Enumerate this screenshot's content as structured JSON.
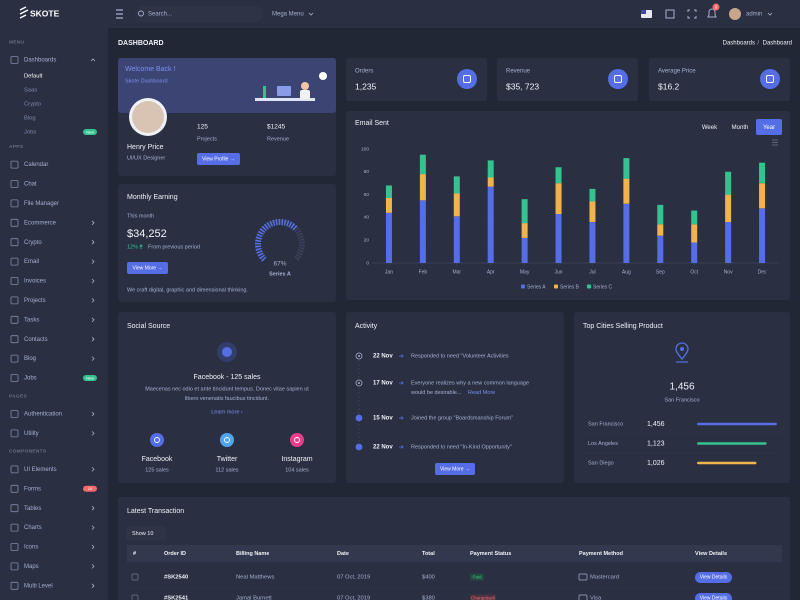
{
  "brand": "SKOTE",
  "topbar": {
    "search": "Search...",
    "mega_menu": "Mega Menu",
    "notifications": "3",
    "user": "admin"
  },
  "page": {
    "title": "DASHBOARD",
    "breadcrumb": [
      "Dashboards",
      "Dashboard"
    ]
  },
  "sidebar": [
    {
      "title": "MENU",
      "items": [
        {
          "label": "Dashboards",
          "expandable": true,
          "children": [
            {
              "label": "Default",
              "active": true
            },
            {
              "label": "Saas"
            },
            {
              "label": "Crypto"
            },
            {
              "label": "Blog"
            },
            {
              "label": "Jobs",
              "badge": "New"
            }
          ]
        }
      ]
    },
    {
      "title": "APPS",
      "items": [
        {
          "label": "Calendar"
        },
        {
          "label": "Chat"
        },
        {
          "label": "File Manager"
        },
        {
          "label": "Ecommerce",
          "expandable": true
        },
        {
          "label": "Crypto",
          "expandable": true
        },
        {
          "label": "Email",
          "expandable": true
        },
        {
          "label": "Invoices",
          "expandable": true
        },
        {
          "label": "Projects",
          "expandable": true
        },
        {
          "label": "Tasks",
          "expandable": true
        },
        {
          "label": "Contacts",
          "expandable": true
        },
        {
          "label": "Blog",
          "expandable": true
        },
        {
          "label": "Jobs",
          "badge": "New"
        }
      ]
    },
    {
      "title": "PAGES",
      "items": [
        {
          "label": "Authentication",
          "expandable": true
        },
        {
          "label": "Utility",
          "expandable": true
        }
      ]
    },
    {
      "title": "COMPONENTS",
      "items": [
        {
          "label": "UI Elements",
          "expandable": true
        },
        {
          "label": "Forms",
          "badge": "10"
        },
        {
          "label": "Tables",
          "expandable": true
        },
        {
          "label": "Charts",
          "expandable": true
        },
        {
          "label": "Icons",
          "expandable": true
        },
        {
          "label": "Maps",
          "expandable": true
        },
        {
          "label": "Multi Level",
          "expandable": true
        }
      ]
    }
  ],
  "welcome": {
    "title": "Welcome Back !",
    "subtitle": "Skote Dashboard",
    "name": "Henry Price",
    "role": "UI/UX Designer",
    "stats": [
      {
        "value": "125",
        "label": "Projects"
      },
      {
        "value": "$1245",
        "label": "Revenue"
      }
    ],
    "button": "View Profile →"
  },
  "earning": {
    "title": "Monthly Earning",
    "period": "This month",
    "amount": "$34,252",
    "change": "12%",
    "change_text": "From previous period",
    "button": "View More →",
    "note": "We craft digital, graphic and dimensional thinking.",
    "gauge": {
      "value": 67,
      "label": "67%",
      "name": "Series A"
    }
  },
  "stats": [
    {
      "label": "Orders",
      "value": "1,235"
    },
    {
      "label": "Revenue",
      "value": "$35, 723"
    },
    {
      "label": "Average Price",
      "value": "$16.2"
    }
  ],
  "email_card": {
    "title": "Email Sent",
    "tabs": [
      {
        "label": "Week"
      },
      {
        "label": "Month"
      },
      {
        "label": "Year",
        "active": true
      }
    ]
  },
  "chart_data": {
    "type": "stacked_bar",
    "categories": [
      "Jan",
      "Feb",
      "Mar",
      "Apr",
      "May",
      "Jun",
      "Jul",
      "Aug",
      "Sep",
      "Oct",
      "Nov",
      "Dec"
    ],
    "series": [
      {
        "name": "Series A",
        "color": "#556ee6",
        "values": [
          44,
          55,
          41,
          67,
          22,
          43,
          36,
          52,
          24,
          18,
          36,
          48
        ]
      },
      {
        "name": "Series B",
        "color": "#f1b44c",
        "values": [
          13,
          23,
          20,
          8,
          13,
          27,
          18,
          22,
          10,
          16,
          24,
          22
        ]
      },
      {
        "name": "Series C",
        "color": "#34c38f",
        "values": [
          11,
          17,
          15,
          15,
          21,
          14,
          11,
          18,
          17,
          12,
          20,
          18
        ]
      }
    ],
    "ylim": [
      0,
      100
    ],
    "yticks": [
      0,
      20,
      40,
      60,
      80,
      100
    ],
    "grid": true,
    "legend": "bottom"
  },
  "social": {
    "title": "Social Source",
    "headline": "Facebook - 125 sales",
    "text": [
      "Maecenas nec odio et ante tincidunt tempus. Donec vitae sapien ut",
      "libero venenatis faucibus tincidunt."
    ],
    "link": "Learn more ›",
    "sources": [
      {
        "name": "Facebook",
        "sales": "125 sales",
        "color": "#556ee6"
      },
      {
        "name": "Twitter",
        "sales": "112 sales",
        "color": "#50a5f1"
      },
      {
        "name": "Instagram",
        "sales": "104 sales",
        "color": "#e83e8c"
      }
    ]
  },
  "activity": {
    "title": "Activity",
    "button": "View More →",
    "items": [
      {
        "date": "22 Nov",
        "text": [
          "Responded to need \"Volunteer Activities"
        ]
      },
      {
        "date": "17 Nov",
        "text": [
          "Everyone realizes why a new common language",
          "would be desirable..."
        ],
        "link": "Read More"
      },
      {
        "date": "15 Nov",
        "text": [
          "Joined the group \"Boardsmanship Forum\""
        ]
      },
      {
        "date": "22 Nov",
        "text": [
          "Responded to need \"In-Kind Opportunity\""
        ]
      }
    ]
  },
  "cities": {
    "title": "Top Cities Selling Product",
    "top_value": "1,456",
    "top_city": "San Francisco",
    "rows": [
      {
        "city": "San Francisco",
        "value": "1,456",
        "percent": 94,
        "color": "#556ee6"
      },
      {
        "city": "Los Angeles",
        "value": "1,123",
        "percent": 82,
        "color": "#34c38f"
      },
      {
        "city": "San Diego",
        "value": "1,026",
        "percent": 70,
        "color": "#f1b44c"
      }
    ]
  },
  "transactions": {
    "title": "Latest Transaction",
    "show": "Show 10",
    "columns": [
      "#",
      "Order ID",
      "Billing Name",
      "Date",
      "Total",
      "Payment Status",
      "Payment Method",
      "View Details"
    ],
    "rows": [
      {
        "id": "#SK2540",
        "name": "Neal Matthews",
        "date": "07 Oct, 2019",
        "total": "$400",
        "status": "Paid",
        "method": "Mastercard",
        "action": "View Details"
      },
      {
        "id": "#SK2541",
        "name": "Jamal Burnett",
        "date": "07 Oct, 2019",
        "total": "$380",
        "status": "Chargeback",
        "method": "Visa",
        "action": "View Details"
      }
    ]
  }
}
